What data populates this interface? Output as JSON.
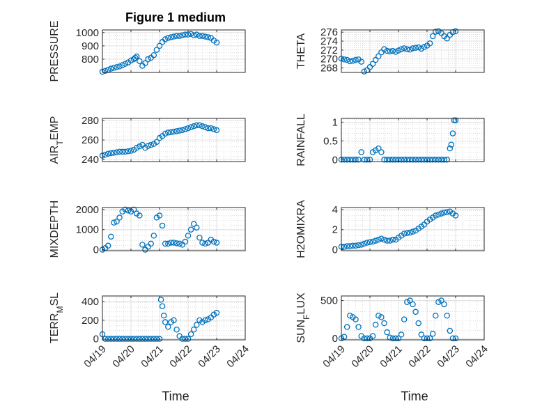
{
  "figure": {
    "title": "Figure 1 medium"
  },
  "colors": {
    "marker": "#0072BD",
    "axis": "#262626",
    "grid": "#d9d9d9",
    "grid_minor": "#c8c8c8"
  },
  "chart_data": [
    {
      "type": "scatter",
      "ylabel": "PRESSURE",
      "xlim": [
        "04/19",
        "04/24"
      ],
      "ylim": [
        700,
        1020
      ],
      "yticks": [
        800,
        900,
        1000
      ],
      "xticks": [
        "04/19",
        "04/20",
        "04/21",
        "04/22",
        "04/23",
        "04/24"
      ],
      "grid": true,
      "minor_grid": true,
      "x": [
        0,
        0.1,
        0.2,
        0.3,
        0.4,
        0.5,
        0.6,
        0.7,
        0.8,
        0.9,
        1,
        1.1,
        1.15,
        1.2,
        1.3,
        1.4,
        1.5,
        1.6,
        1.7,
        1.8,
        1.9,
        2,
        2.1,
        2.2,
        2.3,
        2.4,
        2.5,
        2.6,
        2.7,
        2.8,
        2.9,
        3,
        3.1,
        3.2,
        3.3,
        3.4,
        3.5,
        3.6,
        3.7,
        3.8,
        3.9,
        4
      ],
      "y": [
        705,
        712,
        720,
        728,
        735,
        740,
        745,
        755,
        765,
        775,
        790,
        800,
        810,
        820,
        785,
        750,
        770,
        800,
        810,
        830,
        870,
        900,
        930,
        950,
        960,
        965,
        970,
        975,
        975,
        980,
        985,
        985,
        990,
        980,
        985,
        975,
        975,
        970,
        965,
        960,
        940,
        925
      ]
    },
    {
      "type": "scatter",
      "ylabel": "THETA",
      "xlim": [
        "04/19",
        "04/24"
      ],
      "ylim": [
        267,
        276.5
      ],
      "yticks": [
        268,
        270,
        272,
        274,
        276
      ],
      "xticks": [
        "04/19",
        "04/20",
        "04/21",
        "04/22",
        "04/23",
        "04/24"
      ],
      "grid": true,
      "minor_grid": true,
      "x": [
        0,
        0.1,
        0.2,
        0.3,
        0.4,
        0.5,
        0.6,
        0.7,
        0.8,
        0.9,
        1,
        1.1,
        1.2,
        1.3,
        1.4,
        1.5,
        1.6,
        1.7,
        1.8,
        1.9,
        2,
        2.1,
        2.2,
        2.3,
        2.4,
        2.5,
        2.6,
        2.7,
        2.8,
        2.9,
        3,
        3.1,
        3.2,
        3.3,
        3.4,
        3.5,
        3.6,
        3.7,
        3.8,
        3.9,
        4
      ],
      "y": [
        270.1,
        269.9,
        269.8,
        269.5,
        269.6,
        269.8,
        269.9,
        269.4,
        267.2,
        267.5,
        268.2,
        268.9,
        269.8,
        270.6,
        271.5,
        272.2,
        271.8,
        271.7,
        271.8,
        271.6,
        271.9,
        272.2,
        272.4,
        272.2,
        272.1,
        272.4,
        272.5,
        272.6,
        272.3,
        272.7,
        273,
        273.5,
        275.1,
        276.1,
        276.2,
        275.8,
        275.1,
        274.6,
        275.4,
        276,
        276.2
      ]
    },
    {
      "type": "scatter",
      "ylabel": "AIR_TEMP",
      "xlim": [
        "04/19",
        "04/24"
      ],
      "ylim": [
        238,
        282
      ],
      "yticks": [
        240,
        260,
        280
      ],
      "xticks": [
        "04/19",
        "04/20",
        "04/21",
        "04/22",
        "04/23",
        "04/24"
      ],
      "grid": true,
      "minor_grid": true,
      "x": [
        0,
        0.1,
        0.2,
        0.3,
        0.4,
        0.5,
        0.6,
        0.7,
        0.8,
        0.9,
        1,
        1.1,
        1.2,
        1.3,
        1.4,
        1.5,
        1.6,
        1.7,
        1.8,
        1.9,
        2,
        2.1,
        2.2,
        2.3,
        2.4,
        2.5,
        2.6,
        2.7,
        2.8,
        2.9,
        3,
        3.1,
        3.2,
        3.3,
        3.4,
        3.5,
        3.6,
        3.7,
        3.8,
        3.9,
        4
      ],
      "y": [
        244,
        245,
        246,
        246.5,
        247,
        247.5,
        248,
        248,
        248,
        248.5,
        249,
        250,
        252,
        253.5,
        255,
        252,
        254,
        255,
        256,
        258,
        262,
        264,
        266.5,
        267.5,
        268,
        268.5,
        269,
        269.5,
        270,
        271,
        272,
        273,
        274,
        275,
        275,
        274,
        273,
        272,
        272,
        271,
        270
      ]
    },
    {
      "type": "scatter",
      "ylabel": "RAINFALL",
      "xlim": [
        "04/19",
        "04/24"
      ],
      "ylim": [
        -0.05,
        1.1
      ],
      "yticks": [
        0,
        0.5,
        1
      ],
      "xticks": [
        "04/19",
        "04/20",
        "04/21",
        "04/22",
        "04/23",
        "04/24"
      ],
      "grid": true,
      "minor_grid": true,
      "x": [
        0,
        0.1,
        0.2,
        0.3,
        0.4,
        0.5,
        0.6,
        0.7,
        0.8,
        0.9,
        1,
        1.1,
        1.2,
        1.3,
        1.4,
        1.5,
        1.6,
        1.7,
        1.8,
        1.9,
        2,
        2.1,
        2.2,
        2.3,
        2.4,
        2.5,
        2.6,
        2.7,
        2.8,
        2.9,
        3,
        3.1,
        3.2,
        3.3,
        3.4,
        3.5,
        3.6,
        3.7,
        3.8,
        3.85,
        3.9,
        3.95,
        4
      ],
      "y": [
        0,
        0,
        0,
        0,
        0,
        0,
        0,
        0.2,
        0,
        0,
        0,
        0.2,
        0.25,
        0.3,
        0.2,
        0,
        0,
        0,
        0,
        0,
        0,
        0,
        0,
        0,
        0,
        0,
        0,
        0,
        0,
        0,
        0,
        0,
        0,
        0,
        0,
        0,
        0,
        0,
        0.3,
        0.4,
        0.7,
        1.05,
        1.05
      ]
    },
    {
      "type": "scatter",
      "ylabel": "MIXDEPTH",
      "xlim": [
        "04/19",
        "04/24"
      ],
      "ylim": [
        -50,
        2100
      ],
      "yticks": [
        0,
        1000,
        2000
      ],
      "xticks": [
        "04/19",
        "04/20",
        "04/21",
        "04/22",
        "04/23",
        "04/24"
      ],
      "grid": true,
      "minor_grid": true,
      "x": [
        0,
        0.1,
        0.2,
        0.3,
        0.4,
        0.5,
        0.6,
        0.7,
        0.8,
        0.9,
        1,
        1.1,
        1.2,
        1.3,
        1.4,
        1.5,
        1.6,
        1.7,
        1.8,
        1.9,
        2,
        2.1,
        2.2,
        2.3,
        2.4,
        2.5,
        2.6,
        2.7,
        2.8,
        2.9,
        3,
        3.1,
        3.2,
        3.3,
        3.4,
        3.5,
        3.6,
        3.7,
        3.8,
        3.9,
        4
      ],
      "y": [
        0,
        80,
        200,
        650,
        1350,
        1400,
        1600,
        1900,
        2000,
        1950,
        1900,
        2000,
        1800,
        1700,
        250,
        0,
        150,
        300,
        700,
        1600,
        1700,
        1200,
        300,
        300,
        350,
        350,
        320,
        300,
        250,
        400,
        700,
        1000,
        1280,
        1100,
        600,
        350,
        300,
        350,
        500,
        400,
        350
      ]
    },
    {
      "type": "scatter",
      "ylabel": "H2OMIXRA",
      "xlim": [
        "04/19",
        "04/24"
      ],
      "ylim": [
        -0.1,
        4.2
      ],
      "yticks": [
        0,
        2,
        4
      ],
      "xticks": [
        "04/19",
        "04/20",
        "04/21",
        "04/22",
        "04/23",
        "04/24"
      ],
      "grid": true,
      "minor_grid": true,
      "x": [
        0,
        0.1,
        0.2,
        0.3,
        0.4,
        0.5,
        0.6,
        0.7,
        0.8,
        0.9,
        1,
        1.1,
        1.2,
        1.3,
        1.4,
        1.5,
        1.6,
        1.7,
        1.8,
        1.9,
        2,
        2.1,
        2.2,
        2.3,
        2.4,
        2.5,
        2.6,
        2.7,
        2.8,
        2.9,
        3,
        3.1,
        3.2,
        3.3,
        3.4,
        3.5,
        3.6,
        3.7,
        3.8,
        3.9,
        4
      ],
      "y": [
        0.3,
        0.3,
        0.35,
        0.35,
        0.4,
        0.4,
        0.45,
        0.5,
        0.6,
        0.7,
        0.75,
        0.8,
        0.9,
        1,
        1.1,
        1.0,
        0.9,
        0.9,
        1,
        1,
        1.2,
        1.4,
        1.6,
        1.65,
        1.7,
        1.8,
        1.9,
        2.1,
        2.3,
        2.5,
        2.8,
        3.0,
        3.2,
        3.4,
        3.5,
        3.6,
        3.7,
        3.75,
        3.8,
        3.6,
        3.4
      ]
    },
    {
      "type": "scatter",
      "ylabel": "TERR_MSL",
      "xlim": [
        "04/19",
        "04/24"
      ],
      "ylim": [
        -10,
        460
      ],
      "yticks": [
        0,
        200,
        400
      ],
      "xticks": [
        "04/19",
        "04/20",
        "04/21",
        "04/22",
        "04/23",
        "04/24"
      ],
      "grid": true,
      "minor_grid": true,
      "x": [
        0,
        0.1,
        0.2,
        0.3,
        0.4,
        0.5,
        0.6,
        0.7,
        0.8,
        0.9,
        1,
        1.1,
        1.2,
        1.3,
        1.4,
        1.5,
        1.6,
        1.7,
        1.8,
        1.9,
        2,
        2.05,
        2.1,
        2.15,
        2.2,
        2.3,
        2.4,
        2.5,
        2.6,
        2.7,
        2.8,
        2.9,
        3,
        3.1,
        3.2,
        3.3,
        3.4,
        3.5,
        3.6,
        3.7,
        3.8,
        3.9,
        4
      ],
      "y": [
        50,
        0,
        0,
        0,
        0,
        0,
        0,
        0,
        0,
        0,
        0,
        0,
        0,
        0,
        0,
        0,
        0,
        0,
        0,
        0,
        0,
        420,
        350,
        250,
        180,
        130,
        180,
        200,
        100,
        30,
        0,
        0,
        0,
        50,
        100,
        150,
        200,
        180,
        200,
        210,
        230,
        260,
        280
      ]
    },
    {
      "type": "scatter",
      "ylabel": "SUN_FLUX",
      "xlim": [
        "04/19",
        "04/24"
      ],
      "ylim": [
        -20,
        560
      ],
      "yticks": [
        0,
        500
      ],
      "xticks": [
        "04/19",
        "04/20",
        "04/21",
        "04/22",
        "04/23",
        "04/24"
      ],
      "grid": true,
      "minor_grid": true,
      "x": [
        0,
        0.1,
        0.2,
        0.3,
        0.4,
        0.5,
        0.6,
        0.7,
        0.8,
        0.9,
        1,
        1.1,
        1.2,
        1.3,
        1.4,
        1.5,
        1.6,
        1.7,
        1.8,
        1.9,
        2,
        2.1,
        2.2,
        2.3,
        2.4,
        2.5,
        2.6,
        2.7,
        2.8,
        2.9,
        3,
        3.1,
        3.2,
        3.3,
        3.4,
        3.5,
        3.6,
        3.7,
        3.8,
        3.9,
        4
      ],
      "y": [
        0,
        20,
        150,
        300,
        280,
        250,
        150,
        30,
        0,
        0,
        0,
        30,
        180,
        300,
        280,
        200,
        80,
        10,
        0,
        0,
        0,
        50,
        250,
        480,
        500,
        450,
        350,
        200,
        50,
        0,
        0,
        0,
        60,
        300,
        480,
        500,
        450,
        300,
        100,
        0,
        0
      ]
    }
  ],
  "shared": {
    "xlabel": "Time"
  }
}
